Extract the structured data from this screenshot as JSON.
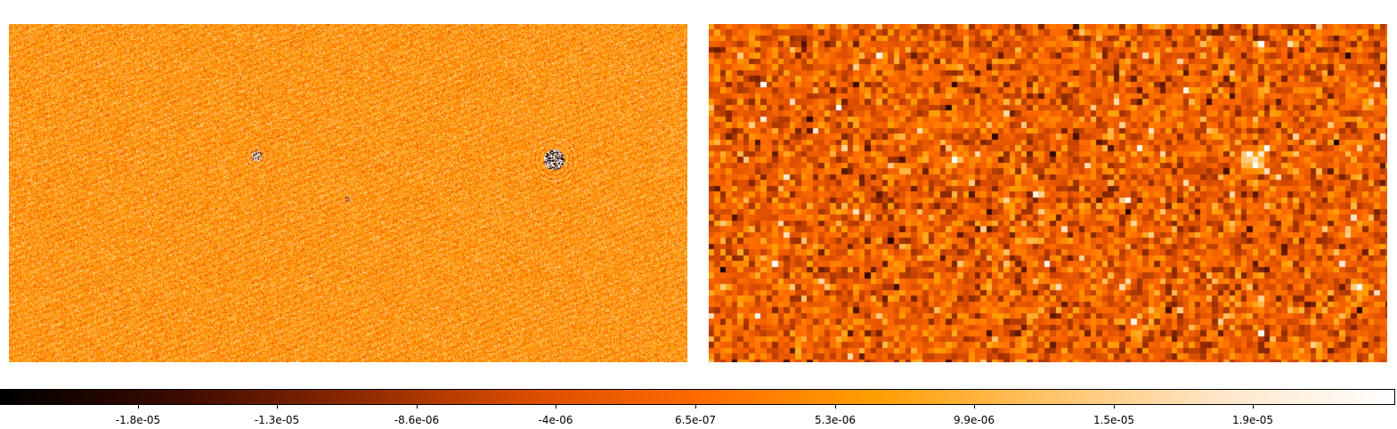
{
  "figure": {
    "colormap": [
      "#000000",
      "#3a0a00",
      "#8a2800",
      "#d84c00",
      "#ff6a00",
      "#ff9d00",
      "#ffc266",
      "#ffe6c8",
      "#ffffff"
    ],
    "panels": [
      {
        "id": "left",
        "style": "fine-noise",
        "sources": 4
      },
      {
        "id": "right",
        "style": "coarse-pixels",
        "sources": 3
      }
    ],
    "colorbar": {
      "ticks": [
        {
          "label": "-1.8e-05"
        },
        {
          "label": "-1.3e-05"
        },
        {
          "label": "-8.6e-06"
        },
        {
          "label": "-4e-06"
        },
        {
          "label": "6.5e-07"
        },
        {
          "label": "5.3e-06"
        },
        {
          "label": "9.9e-06"
        },
        {
          "label": "1.5e-05"
        },
        {
          "label": "1.9e-05"
        }
      ]
    }
  }
}
